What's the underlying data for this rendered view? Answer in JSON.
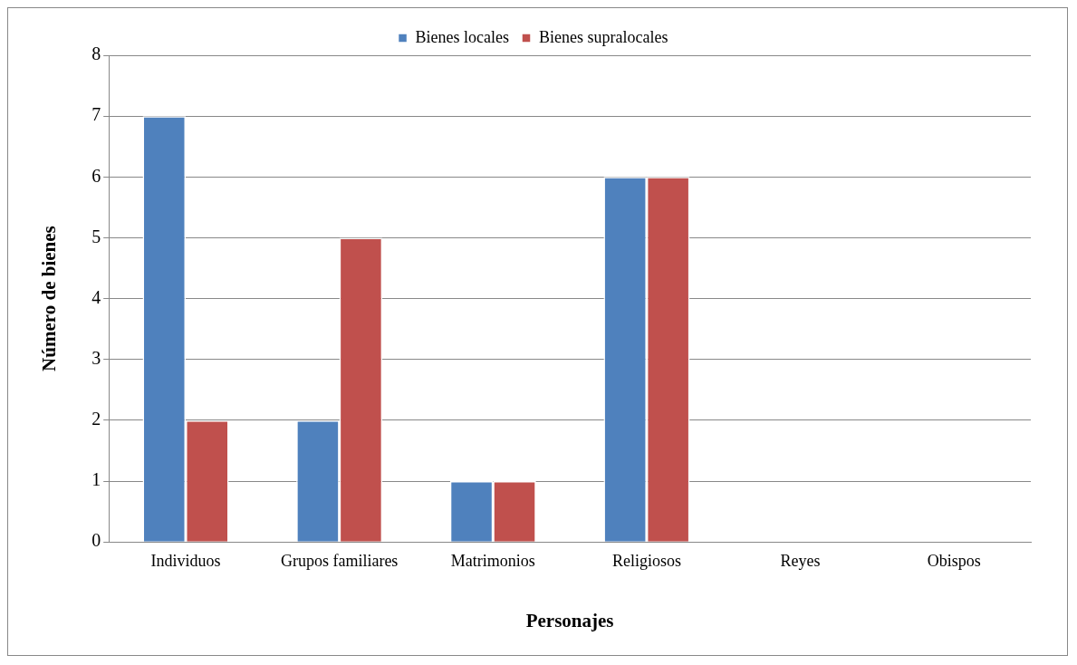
{
  "chart_data": {
    "type": "bar",
    "xlabel": "Personajes",
    "ylabel": "Número de bienes",
    "categories": [
      "Individuos",
      "Grupos familiares",
      "Matrimonios",
      "Religiosos",
      "Reyes",
      "Obispos"
    ],
    "series": [
      {
        "name": "Bienes locales",
        "color": "#4f81bd",
        "values": [
          7,
          2,
          1,
          6,
          0,
          0
        ]
      },
      {
        "name": "Bienes supralocales",
        "color": "#c0504d",
        "values": [
          2,
          5,
          1,
          6,
          0,
          0
        ]
      }
    ],
    "ylim": [
      0,
      8
    ],
    "yticks": [
      0,
      1,
      2,
      3,
      4,
      5,
      6,
      7,
      8
    ],
    "grid": "y",
    "legend": "top"
  }
}
